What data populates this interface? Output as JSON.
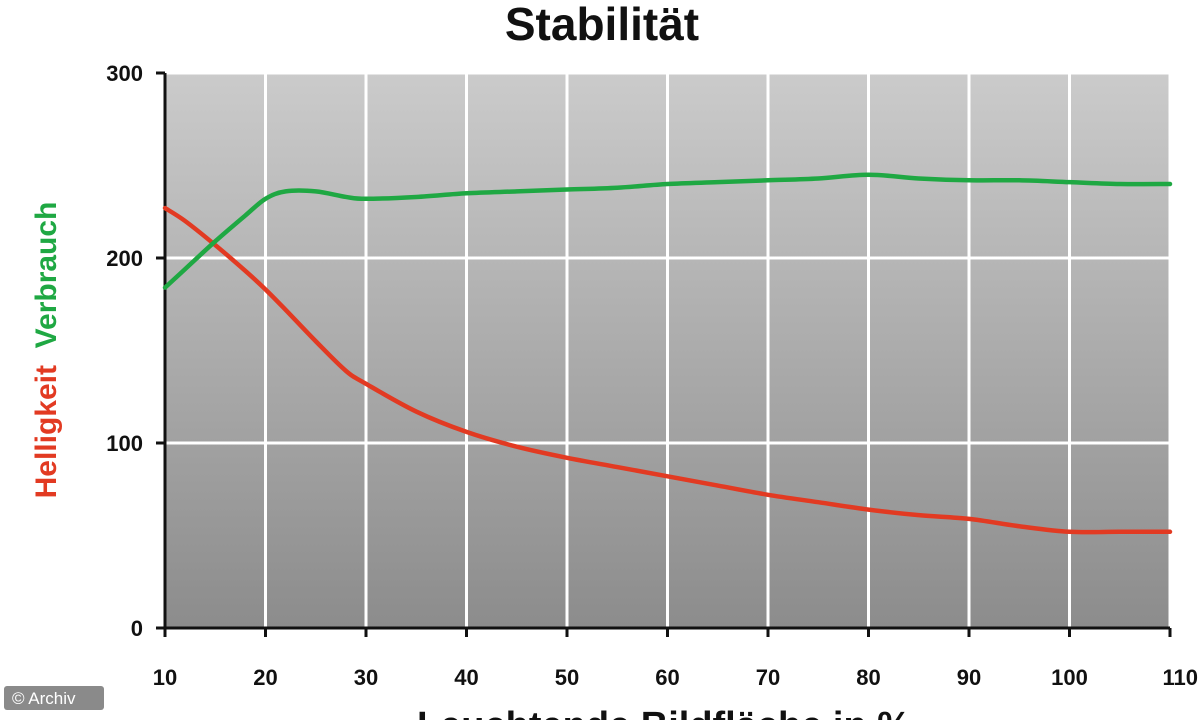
{
  "chart_data": {
    "type": "line",
    "title": "Stabilität",
    "xlabel": "Leuchtende Bildfläche in %",
    "ylabel_parts": [
      {
        "text": "Helligkeit",
        "color": "#e23a22"
      },
      {
        "text": "Verbrauch",
        "color": "#1fa843"
      }
    ],
    "xlim": [
      10,
      110
    ],
    "ylim": [
      0,
      300
    ],
    "xticks": [
      10,
      20,
      30,
      40,
      50,
      60,
      70,
      80,
      90,
      100,
      110
    ],
    "yticks": [
      0,
      100,
      200,
      300
    ],
    "grid": true,
    "series": [
      {
        "key": "helligkeit",
        "color": "#e23a22",
        "x": [
          10,
          12,
          15,
          18,
          20,
          22,
          25,
          28,
          30,
          35,
          40,
          45,
          50,
          55,
          60,
          65,
          70,
          75,
          80,
          85,
          90,
          95,
          100,
          105,
          110
        ],
        "y": [
          227,
          220,
          207,
          193,
          183,
          172,
          155,
          139,
          132,
          117,
          106,
          98,
          92,
          87,
          82,
          77,
          72,
          68,
          64,
          61,
          59,
          55,
          52,
          52,
          52
        ]
      },
      {
        "key": "verbrauch",
        "color": "#1fa843",
        "x": [
          10,
          12,
          15,
          18,
          20,
          22,
          25,
          28,
          30,
          35,
          40,
          45,
          50,
          55,
          60,
          65,
          70,
          75,
          80,
          85,
          90,
          95,
          100,
          105,
          110
        ],
        "y": [
          184,
          194,
          209,
          223,
          232,
          236,
          236,
          233,
          232,
          233,
          235,
          236,
          237,
          238,
          240,
          241,
          242,
          243,
          245,
          243,
          242,
          242,
          241,
          240,
          240
        ]
      }
    ]
  },
  "credit": "© Archiv",
  "colors": {
    "plot_top": "#cbcbcb",
    "plot_bottom": "#8c8c8c",
    "grid": "#ffffff",
    "axis": "#111111"
  }
}
